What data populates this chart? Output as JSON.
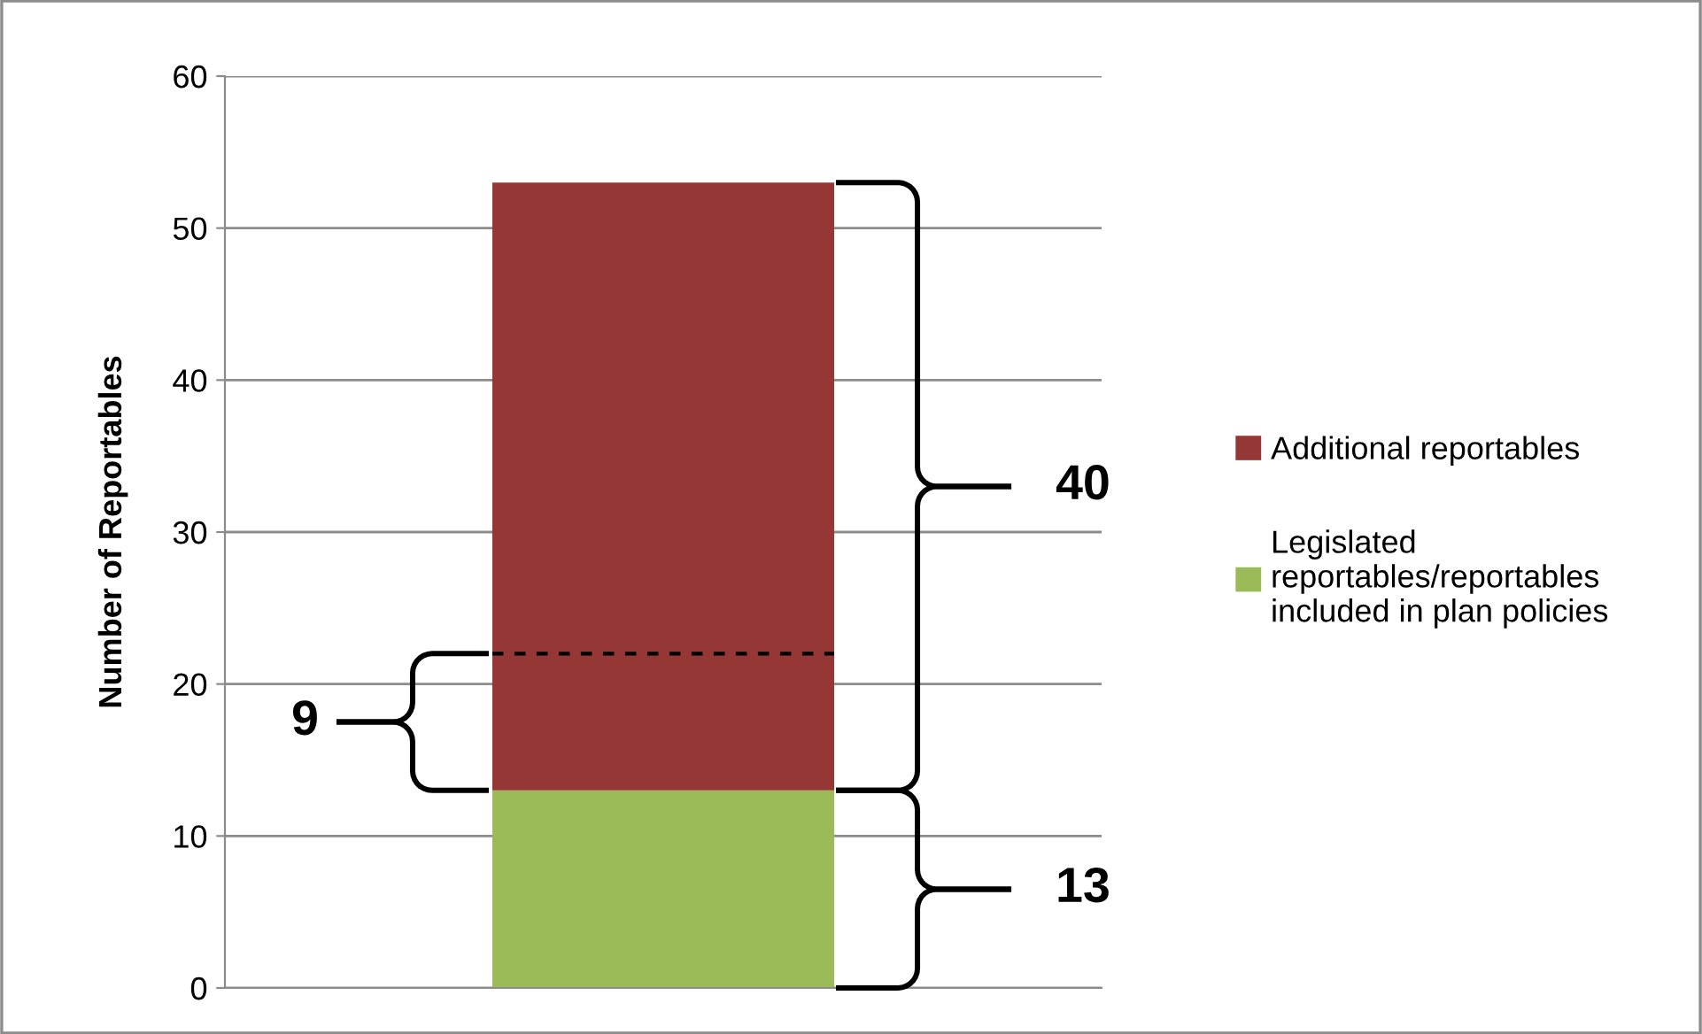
{
  "chart_data": {
    "type": "bar",
    "stacked": true,
    "ylabel": "Number of Reportables",
    "categories": [
      null
    ],
    "series": [
      {
        "name": "Legislated\nreportables/reportables\nincluded in plan policies",
        "color": "#9bbb59",
        "values": [
          13
        ]
      },
      {
        "name": "Additional reportables",
        "color": "#953735",
        "values": [
          40
        ]
      }
    ],
    "ylim": [
      0,
      60
    ],
    "yticks": [
      0,
      10,
      20,
      30,
      40,
      50,
      60
    ],
    "grid": "y",
    "legend": "right",
    "ref_lines": [
      {
        "axis": "y",
        "value": 22,
        "color": "#000000",
        "line_style": "dashed"
      }
    ],
    "annotations": [
      "9",
      "40",
      "13"
    ]
  }
}
